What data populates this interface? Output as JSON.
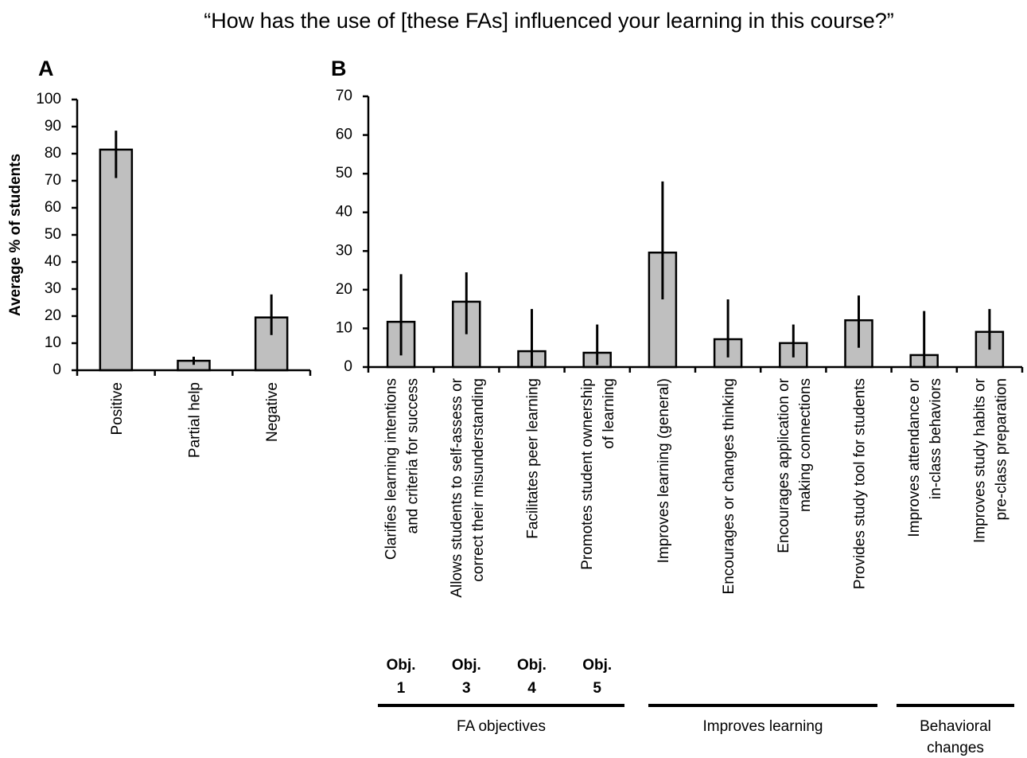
{
  "title": "“How has the use of [these FAs] influenced your learning in this course?”",
  "chart_data": [
    {
      "type": "bar",
      "panel": "A",
      "y_label": "Average % of students",
      "categories": [
        [
          "Positive"
        ],
        [
          "Partial help"
        ],
        [
          "Negative"
        ]
      ],
      "values": [
        81.5,
        3.5,
        19.5
      ],
      "error_low": [
        10.5,
        1.5,
        6.5
      ],
      "error_high": [
        7,
        1.5,
        8.5
      ],
      "color": "#bfbfbf",
      "ylim": [
        0,
        100
      ],
      "yticks": [
        0,
        10,
        20,
        30,
        40,
        50,
        60,
        70,
        80,
        90,
        100
      ]
    },
    {
      "type": "bar",
      "panel": "B",
      "categories": [
        [
          "Clarifies learning intentions",
          "and criteria for success"
        ],
        [
          "Allows students to self-assess or",
          "correct their misunderstanding"
        ],
        [
          "Facilitates peer learning"
        ],
        [
          "Promotes student ownership",
          "of learning"
        ],
        [
          "Improves learning (general)"
        ],
        [
          "Encourages or changes thinking"
        ],
        [
          "Encourages application or",
          "making connections"
        ],
        [
          "Provides study tool for students"
        ],
        [
          "Improves attendance or",
          "in-class behaviors"
        ],
        [
          "Improves study habits or",
          "pre-class preparation"
        ]
      ],
      "values": [
        11.7,
        16.9,
        4.1,
        3.7,
        29.6,
        7.2,
        6.2,
        12.1,
        3.1,
        9.1
      ],
      "error_low": [
        8.7,
        8.4,
        4.1,
        3.2,
        12.1,
        4.7,
        3.7,
        7.1,
        3.1,
        4.6
      ],
      "error_high": [
        12.3,
        7.6,
        10.9,
        7.3,
        18.4,
        10.3,
        4.8,
        6.4,
        11.4,
        5.9
      ],
      "objective_labels": [
        [
          "Obj.",
          "1"
        ],
        [
          "Obj.",
          "3"
        ],
        [
          "Obj.",
          "4"
        ],
        [
          "Obj.",
          "5"
        ]
      ],
      "groups": [
        [
          "FA objectives"
        ],
        [
          "Improves learning"
        ],
        [
          "Behavioral",
          "changes"
        ]
      ],
      "color": "#bfbfbf",
      "ylim": [
        0,
        70
      ],
      "yticks": [
        0,
        10,
        20,
        30,
        40,
        50,
        60,
        70
      ]
    }
  ]
}
